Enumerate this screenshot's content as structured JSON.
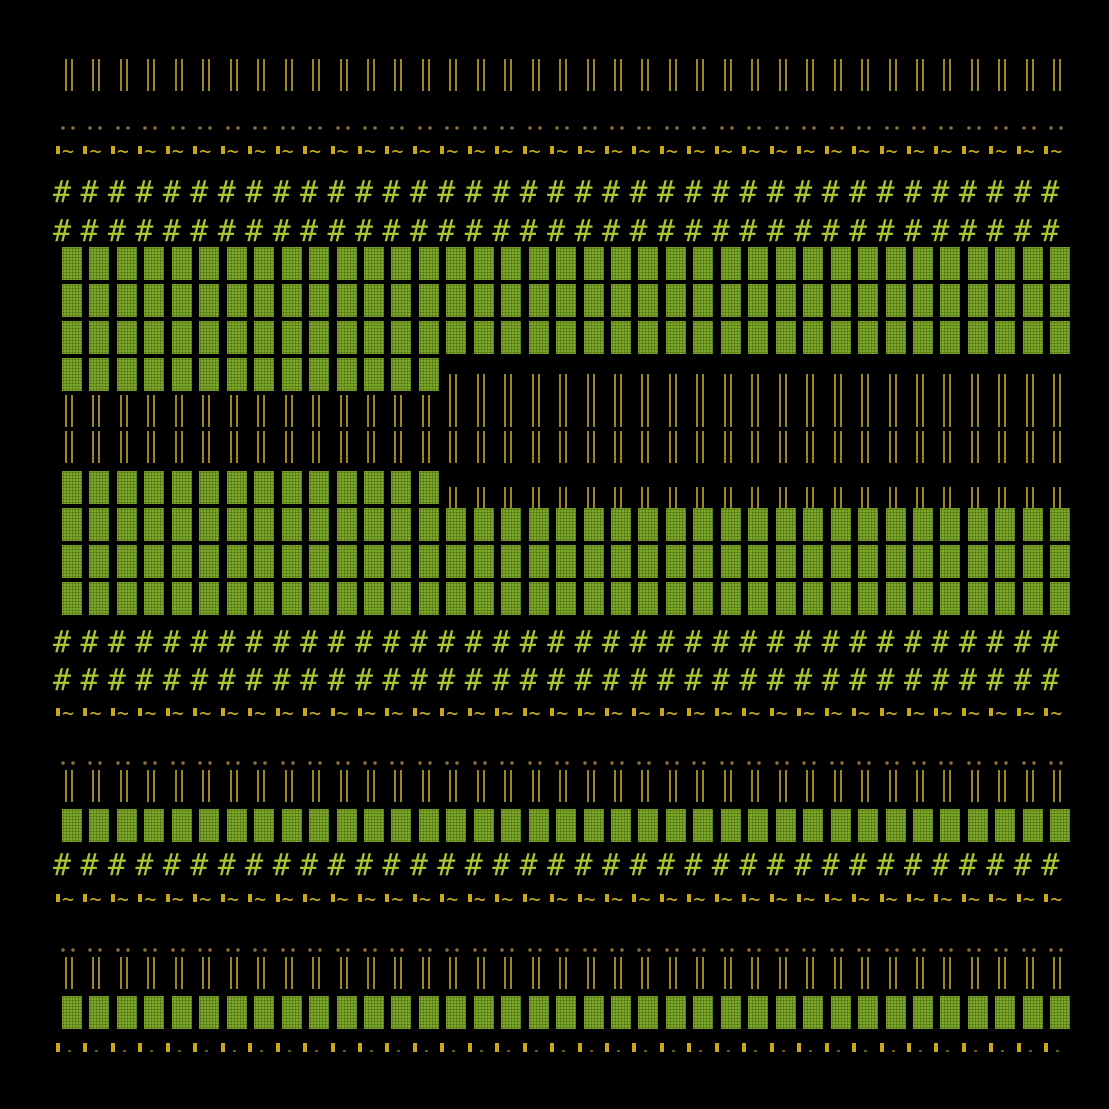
{
  "colors": {
    "background": "#000000",
    "bars": "#9c8620",
    "dots": "#8a6c3a",
    "tilde": "#c8b020",
    "hash": "#a8c832",
    "block": "#7ea82a"
  },
  "columns": 37,
  "rows": [
    {
      "segments": [
        {
          "glyph": "||",
          "count": 37
        }
      ]
    },
    {
      "segments": [
        {
          "glyph": "..",
          "count": 37
        }
      ]
    },
    {
      "segments": [
        {
          "glyph": "'~",
          "count": 37
        }
      ]
    },
    {
      "segments": [
        {
          "glyph": "#",
          "count": 37
        }
      ]
    },
    {
      "segments": [
        {
          "glyph": "#",
          "count": 37
        }
      ]
    },
    {
      "segments": [
        {
          "glyph": "▓",
          "count": 37
        }
      ]
    },
    {
      "segments": [
        {
          "glyph": "▓",
          "count": 37
        }
      ]
    },
    {
      "segments": [
        {
          "glyph": "▓",
          "count": 37
        }
      ]
    },
    {
      "segments": [
        {
          "glyph": "▓",
          "count": 14
        },
        {
          "glyph": "||",
          "count": 23
        }
      ]
    },
    {
      "segments": [
        {
          "glyph": "||",
          "count": 37
        }
      ]
    },
    {
      "segments": [
        {
          "glyph": "||",
          "count": 37
        }
      ]
    },
    {
      "segments": [
        {
          "glyph": "▓",
          "count": 14
        },
        {
          "glyph": "||",
          "count": 23
        }
      ]
    },
    {
      "segments": [
        {
          "glyph": "▓",
          "count": 37
        }
      ]
    },
    {
      "segments": [
        {
          "glyph": "▓",
          "count": 37
        }
      ]
    },
    {
      "segments": [
        {
          "glyph": "▓",
          "count": 37
        }
      ]
    },
    {
      "segments": [
        {
          "glyph": "#",
          "count": 37
        }
      ]
    },
    {
      "segments": [
        {
          "glyph": "#",
          "count": 37
        }
      ]
    },
    {
      "segments": [
        {
          "glyph": "'~",
          "count": 37
        }
      ]
    },
    {
      "segments": [
        {
          "glyph": "..",
          "count": 37
        }
      ]
    },
    {
      "segments": [
        {
          "glyph": "||",
          "count": 37
        }
      ]
    },
    {
      "segments": [
        {
          "glyph": "▓",
          "count": 37
        }
      ]
    },
    {
      "segments": [
        {
          "glyph": "#",
          "count": 37
        }
      ]
    },
    {
      "segments": [
        {
          "glyph": "'~",
          "count": 37
        }
      ]
    },
    {
      "segments": [
        {
          "glyph": "..",
          "count": 37
        }
      ]
    },
    {
      "segments": [
        {
          "glyph": "||",
          "count": 37
        }
      ]
    },
    {
      "segments": [
        {
          "glyph": "▓",
          "count": 37
        }
      ]
    },
    {
      "segments": [
        {
          "glyph": "'.",
          "count": 37
        }
      ]
    }
  ]
}
